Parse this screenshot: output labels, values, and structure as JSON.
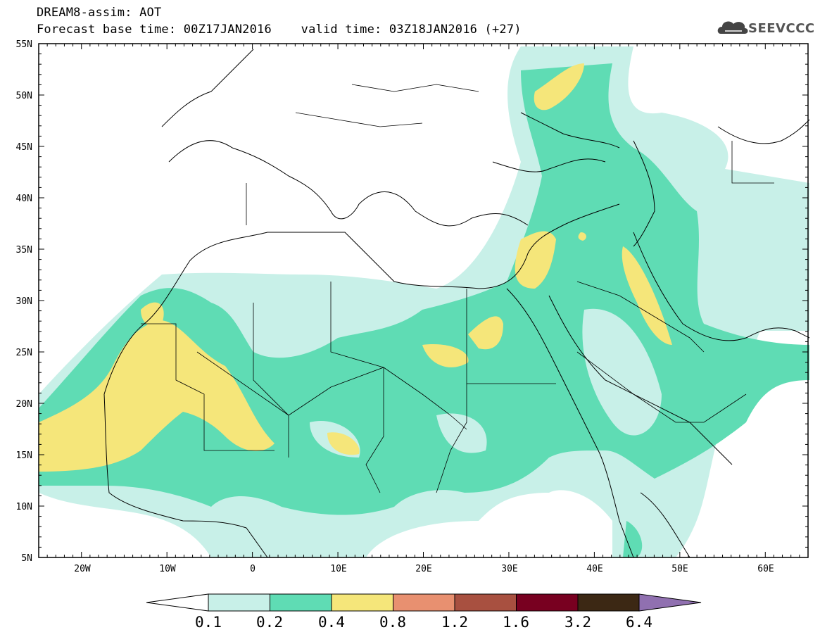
{
  "header": {
    "title_line1": "DREAM8-assim: AOT",
    "title_line2": "Forecast base time: 00Z17JAN2016    valid time: 03Z18JAN2016 (+27)",
    "logo_text": "SEEVCCC"
  },
  "map": {
    "projection": "lat-lon",
    "lon_range": [
      -25,
      65
    ],
    "lat_range": [
      5,
      55
    ],
    "lon_ticks": [
      "20W",
      "10W",
      "0",
      "10E",
      "20E",
      "30E",
      "40E",
      "50E",
      "60E"
    ],
    "lat_ticks": [
      "55N",
      "50N",
      "45N",
      "40N",
      "35N",
      "30N",
      "25N",
      "20N",
      "15N",
      "10N",
      "5N"
    ],
    "field": "AOT"
  },
  "colorbar": {
    "labels": [
      "0.1",
      "0.2",
      "0.4",
      "0.8",
      "1.2",
      "1.6",
      "3.2",
      "6.4"
    ],
    "colors": [
      "#c8f0e8",
      "#5fdcb4",
      "#f5e67a",
      "#e89070",
      "#a85040",
      "#780020",
      "#3c2814",
      "#9070b0"
    ]
  }
}
